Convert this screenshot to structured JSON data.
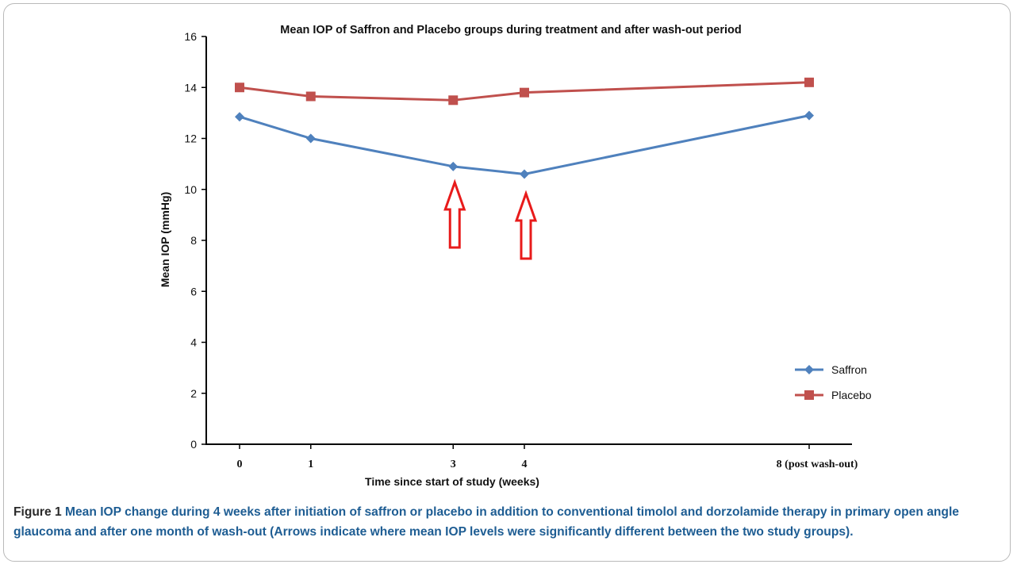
{
  "figure": {
    "caption_label": "Figure 1",
    "caption_text": "Mean IOP change during 4 weeks after initiation of saffron or placebo in addition to conventional timolol and dorzolamide therapy in primary open angle glaucoma and after one month of wash-out (Arrows indicate where mean IOP levels were significantly different between the two study groups)."
  },
  "chart_data": {
    "type": "line",
    "title": "Mean IOP of Saffron and Placebo groups during treatment and after wash-out period",
    "xlabel": "Time since start of study (weeks)",
    "ylabel": "Mean IOP (mmHg)",
    "x": [
      0,
      1,
      3,
      4,
      8
    ],
    "x_tick_labels": [
      "0",
      "1",
      "3",
      "4",
      "8 (post wash-out)"
    ],
    "ylim": [
      0,
      16
    ],
    "y_ticks": [
      0,
      2,
      4,
      6,
      8,
      10,
      12,
      14,
      16
    ],
    "grid": false,
    "legend_position": "bottom-right",
    "series": [
      {
        "name": "Saffron",
        "color": "#4f81bd",
        "marker": "diamond",
        "values": [
          12.85,
          12.0,
          10.9,
          10.6,
          12.9
        ]
      },
      {
        "name": "Placebo",
        "color": "#c0504d",
        "marker": "square",
        "values": [
          14.0,
          13.65,
          13.5,
          13.8,
          14.2
        ]
      }
    ],
    "annotations": [
      {
        "type": "arrow",
        "direction": "up",
        "x": 3,
        "color": "#e81b1b"
      },
      {
        "type": "arrow",
        "direction": "up",
        "x": 4,
        "color": "#e81b1b"
      }
    ]
  }
}
